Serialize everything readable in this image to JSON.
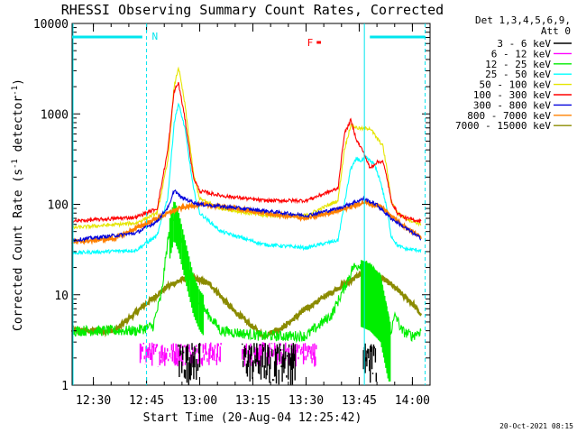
{
  "chart_data": {
    "type": "line",
    "title": "RHESSI Observing Summary Count Rates, Corrected",
    "xlabel": "Start Time (20-Aug-04 12:25:42)",
    "ylabel": "Corrected Count Rate (s",
    "ylabel_sup1": "-1",
    "ylabel_mid": " detector",
    "ylabel_sup2": "-1",
    "ylabel_end": ")",
    "y_scale": "log",
    "ylim": [
      1,
      10000
    ],
    "xlim": [
      12.4,
      14.083
    ],
    "x_ticks": [
      12.5,
      12.75,
      13.0,
      13.25,
      13.5,
      13.75,
      14.0
    ],
    "x_tick_labels": [
      "12:30",
      "12:45",
      "13:00",
      "13:15",
      "13:30",
      "13:45",
      "14:00"
    ],
    "y_ticks": [
      1,
      10,
      100,
      1000,
      10000
    ],
    "y_tick_labels": [
      "1",
      "10",
      "100",
      "1000",
      "10000"
    ],
    "footer_date": "20-Oct-2021 08:15",
    "legend_header": [
      "Det 1,3,4,5,6,9,",
      "Att 0"
    ],
    "colors": {
      "3-6": "#000000",
      "6-12": "#ff00ff",
      "12-25": "#00ee00",
      "25-50": "#00ffff",
      "50-100": "#e5e500",
      "100-300": "#ff0000",
      "300-800": "#0000dd",
      "800-7000": "#ff8000",
      "7000-15000": "#8b8b00",
      "flag_bar": "#00e5ee",
      "flare_flag": "#ff0000"
    },
    "flags": {
      "night_label": "N",
      "night_bars": [
        [
          12.4,
          12.73
        ],
        [
          13.8,
          14.06
        ]
      ],
      "vlines_dashed": [
        12.75,
        14.06
      ],
      "vlines_solid": [
        12.4,
        13.77
      ],
      "flare_label": "F",
      "flare_bar": [
        13.55,
        13.57
      ]
    },
    "series": [
      {
        "name": "3 - 6 keV",
        "key": "3-6",
        "style": "random_bands",
        "band": [
          1,
          3
        ],
        "segments": [
          [
            12.9,
            13.0
          ],
          [
            13.2,
            13.45
          ],
          [
            13.77,
            13.83
          ]
        ]
      },
      {
        "name": "6 - 12 keV",
        "key": "6-12",
        "style": "random_bands",
        "band": [
          1.6,
          3
        ],
        "segments": [
          [
            12.72,
            13.1
          ],
          [
            13.2,
            13.55
          ]
        ]
      },
      {
        "name": "12 - 25 keV",
        "key": "12-25",
        "x": [
          12.4,
          12.7,
          12.78,
          12.82,
          12.85,
          12.88,
          12.9,
          12.93,
          12.97,
          13.0,
          13.1,
          13.3,
          13.5,
          13.62,
          13.68,
          13.72,
          13.76,
          13.8,
          13.85,
          13.9,
          13.92,
          13.95,
          14.0,
          14.04
        ],
        "values": [
          4,
          4,
          4.5,
          10,
          40,
          80,
          60,
          30,
          12,
          8,
          4,
          3.5,
          3.5,
          6,
          12,
          20,
          22,
          20,
          15,
          4,
          6,
          4,
          3.5,
          4
        ]
      },
      {
        "name": "25 - 50 keV",
        "key": "25-50",
        "x": [
          12.4,
          12.7,
          12.8,
          12.85,
          12.88,
          12.9,
          12.93,
          12.97,
          13.0,
          13.1,
          13.3,
          13.5,
          13.65,
          13.68,
          13.71,
          13.74,
          13.76,
          13.78,
          13.82,
          13.85,
          13.88,
          13.9,
          13.93,
          13.97,
          14.04
        ],
        "values": [
          29,
          31,
          45,
          120,
          800,
          1300,
          700,
          150,
          80,
          50,
          36,
          33,
          40,
          100,
          250,
          320,
          300,
          330,
          280,
          180,
          90,
          45,
          35,
          32,
          31
        ]
      },
      {
        "name": "50 - 100 keV",
        "key": "50-100",
        "x": [
          12.4,
          12.7,
          12.8,
          12.85,
          12.88,
          12.9,
          12.93,
          12.97,
          13.0,
          13.1,
          13.3,
          13.5,
          13.65,
          13.68,
          13.71,
          13.74,
          13.77,
          13.8,
          13.83,
          13.86,
          13.88,
          13.9,
          13.93,
          13.97,
          14.04
        ],
        "values": [
          55,
          62,
          80,
          300,
          2000,
          3300,
          1300,
          220,
          115,
          90,
          75,
          75,
          110,
          400,
          750,
          700,
          680,
          700,
          550,
          450,
          250,
          110,
          80,
          70,
          60
        ]
      },
      {
        "name": "100 - 300 keV",
        "key": "100-300",
        "x": [
          12.4,
          12.7,
          12.8,
          12.85,
          12.88,
          12.9,
          12.93,
          12.97,
          13.0,
          13.1,
          13.3,
          13.5,
          13.65,
          13.68,
          13.71,
          13.74,
          13.77,
          13.8,
          13.83,
          13.86,
          13.88,
          13.9,
          13.93,
          13.97,
          14.04
        ],
        "values": [
          65,
          72,
          90,
          400,
          1800,
          2200,
          900,
          200,
          140,
          125,
          110,
          110,
          150,
          600,
          850,
          500,
          380,
          250,
          290,
          300,
          200,
          110,
          80,
          70,
          65
        ]
      },
      {
        "name": "300 - 800 keV",
        "key": "300-800",
        "x": [
          12.4,
          12.7,
          12.8,
          12.86,
          12.88,
          12.91,
          12.95,
          13.0,
          13.1,
          13.3,
          13.5,
          13.65,
          13.77,
          13.83,
          13.9,
          14.04
        ],
        "values": [
          40,
          48,
          65,
          100,
          145,
          120,
          110,
          100,
          95,
          85,
          75,
          90,
          115,
          100,
          70,
          42
        ]
      },
      {
        "name": "800 - 7000 keV",
        "key": "800-7000",
        "x": [
          12.4,
          12.6,
          12.8,
          12.9,
          13.0,
          13.1,
          13.3,
          13.5,
          13.65,
          13.77,
          13.85,
          13.95,
          14.04
        ],
        "values": [
          38,
          42,
          70,
          90,
          100,
          95,
          80,
          70,
          85,
          105,
          95,
          60,
          43
        ]
      },
      {
        "name": "7000 - 15000 keV",
        "key": "7000-15000",
        "x": [
          12.4,
          12.6,
          12.75,
          12.85,
          12.95,
          13.05,
          13.15,
          13.3,
          13.4,
          13.5,
          13.6,
          13.7,
          13.76,
          13.82,
          13.9,
          14.0,
          14.04
        ],
        "values": [
          4,
          4,
          8,
          12.5,
          16,
          13,
          7,
          3.5,
          4.5,
          7,
          10,
          14,
          17,
          17,
          13,
          8,
          6
        ]
      }
    ]
  }
}
